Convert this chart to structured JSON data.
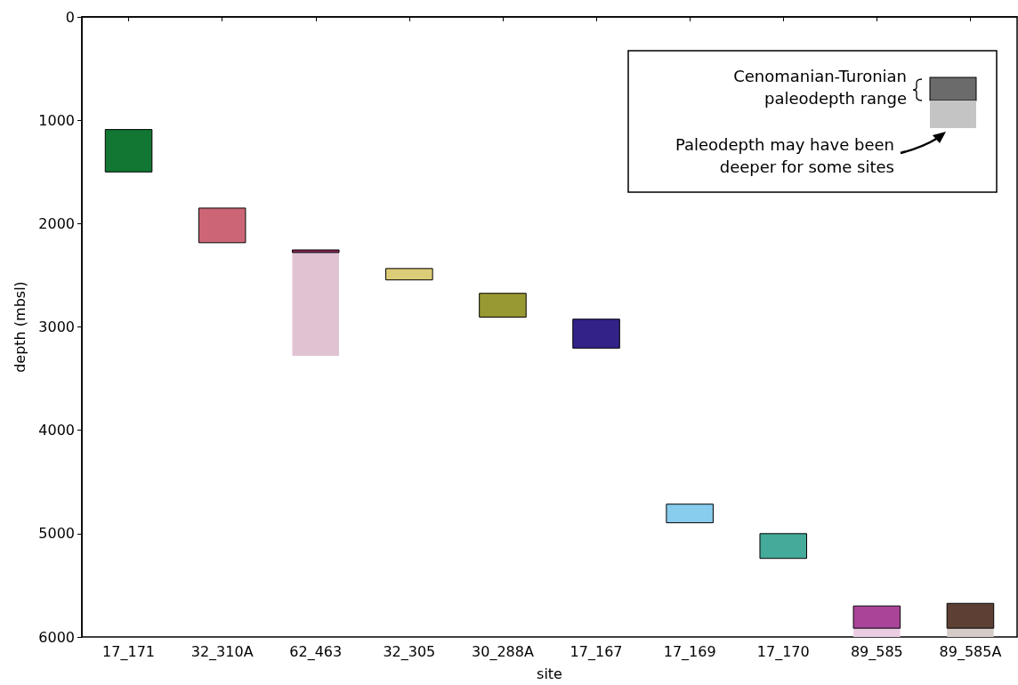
{
  "chart_data": {
    "type": "bar",
    "xlabel": "site",
    "ylabel": "depth (mbsl)",
    "categories": [
      "17_171",
      "32_310A",
      "62_463",
      "32_305",
      "30_288A",
      "17_167",
      "17_169",
      "17_170",
      "89_585",
      "89_585A"
    ],
    "series": [
      {
        "base": [
          1090,
          1850,
          2255,
          2435,
          2675,
          2925,
          4715,
          5000,
          5700,
          5675
        ],
        "values": [
          410,
          335,
          25,
          110,
          230,
          280,
          180,
          240,
          215,
          240
        ],
        "colors": [
          "#117733",
          "#cc6677",
          "#882255",
          "#ddcc77",
          "#999933",
          "#332288",
          "#88ccee",
          "#44aa99",
          "#aa4499",
          "#5d4033"
        ]
      },
      {
        "base": [
          null,
          null,
          2280,
          null,
          null,
          null,
          null,
          null,
          5915,
          5915
        ],
        "values": [
          null,
          null,
          1000,
          null,
          null,
          null,
          null,
          null,
          85,
          85
        ],
        "colors": [
          null,
          null,
          "#e0c3d3",
          null,
          null,
          null,
          null,
          null,
          "#ebcde3",
          "#d5ccc8"
        ]
      }
    ],
    "ylim": [
      6000,
      0
    ],
    "yticks": [
      0,
      1000,
      2000,
      3000,
      4000,
      5000,
      6000
    ],
    "annotations": [
      "Cenomanian-Turonian\npaleodepth range",
      "Paleodepth may have been\ndeeper for some sites"
    ]
  }
}
